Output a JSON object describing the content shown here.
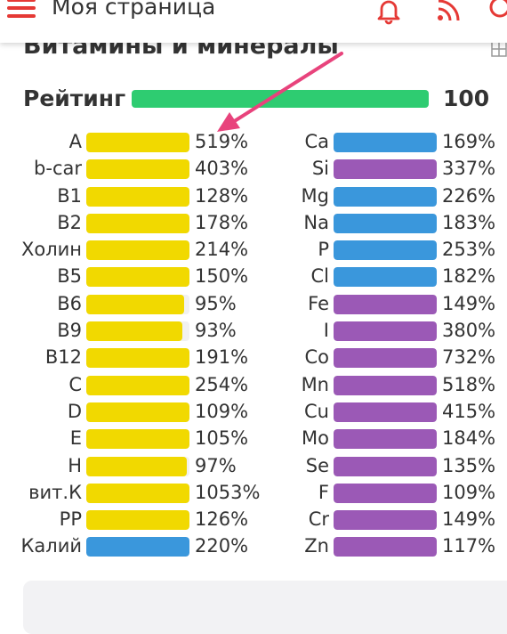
{
  "header": {
    "title": "Моя страница"
  },
  "section": {
    "title": "Витамины и минералы"
  },
  "rating": {
    "label": "Рейтинг",
    "value": "100"
  },
  "colors": {
    "vitamin": "#f1d900",
    "mineral_blue": "#3a97dc",
    "mineral_purple": "#9b59b6",
    "rating": "#2ecc71",
    "accent": "#e53935"
  },
  "vitamins": [
    {
      "name": "A",
      "pct": "519%",
      "level": 1.0,
      "color": "#f1d900"
    },
    {
      "name": "b-car",
      "pct": "403%",
      "level": 1.0,
      "color": "#f1d900"
    },
    {
      "name": "B1",
      "pct": "128%",
      "level": 1.0,
      "color": "#f1d900"
    },
    {
      "name": "B2",
      "pct": "178%",
      "level": 1.0,
      "color": "#f1d900"
    },
    {
      "name": "Холин",
      "pct": "214%",
      "level": 1.0,
      "color": "#f1d900"
    },
    {
      "name": "B5",
      "pct": "150%",
      "level": 1.0,
      "color": "#f1d900"
    },
    {
      "name": "B6",
      "pct": "95%",
      "level": 0.95,
      "color": "#f1d900"
    },
    {
      "name": "B9",
      "pct": "93%",
      "level": 0.93,
      "color": "#f1d900"
    },
    {
      "name": "B12",
      "pct": "191%",
      "level": 1.0,
      "color": "#f1d900"
    },
    {
      "name": "C",
      "pct": "254%",
      "level": 1.0,
      "color": "#f1d900"
    },
    {
      "name": "D",
      "pct": "109%",
      "level": 1.0,
      "color": "#f1d900"
    },
    {
      "name": "E",
      "pct": "105%",
      "level": 1.0,
      "color": "#f1d900"
    },
    {
      "name": "H",
      "pct": "97%",
      "level": 0.97,
      "color": "#f1d900"
    },
    {
      "name": "вит.К",
      "pct": "1053%",
      "level": 1.0,
      "color": "#f1d900"
    },
    {
      "name": "PP",
      "pct": "126%",
      "level": 1.0,
      "color": "#f1d900"
    },
    {
      "name": "Калий",
      "pct": "220%",
      "level": 1.0,
      "color": "#3a97dc"
    }
  ],
  "minerals": [
    {
      "name": "Ca",
      "pct": "169%",
      "level": 1.0,
      "color": "#3a97dc"
    },
    {
      "name": "Si",
      "pct": "337%",
      "level": 1.0,
      "color": "#9b59b6"
    },
    {
      "name": "Mg",
      "pct": "226%",
      "level": 1.0,
      "color": "#3a97dc"
    },
    {
      "name": "Na",
      "pct": "183%",
      "level": 1.0,
      "color": "#3a97dc"
    },
    {
      "name": "P",
      "pct": "253%",
      "level": 1.0,
      "color": "#3a97dc"
    },
    {
      "name": "Cl",
      "pct": "182%",
      "level": 1.0,
      "color": "#3a97dc"
    },
    {
      "name": "Fe",
      "pct": "149%",
      "level": 1.0,
      "color": "#9b59b6"
    },
    {
      "name": "I",
      "pct": "380%",
      "level": 1.0,
      "color": "#9b59b6"
    },
    {
      "name": "Co",
      "pct": "732%",
      "level": 1.0,
      "color": "#9b59b6"
    },
    {
      "name": "Mn",
      "pct": "518%",
      "level": 1.0,
      "color": "#9b59b6"
    },
    {
      "name": "Cu",
      "pct": "415%",
      "level": 1.0,
      "color": "#9b59b6"
    },
    {
      "name": "Mo",
      "pct": "184%",
      "level": 1.0,
      "color": "#9b59b6"
    },
    {
      "name": "Se",
      "pct": "135%",
      "level": 1.0,
      "color": "#9b59b6"
    },
    {
      "name": "F",
      "pct": "109%",
      "level": 1.0,
      "color": "#9b59b6"
    },
    {
      "name": "Cr",
      "pct": "149%",
      "level": 1.0,
      "color": "#9b59b6"
    },
    {
      "name": "Zn",
      "pct": "117%",
      "level": 1.0,
      "color": "#9b59b6"
    }
  ]
}
